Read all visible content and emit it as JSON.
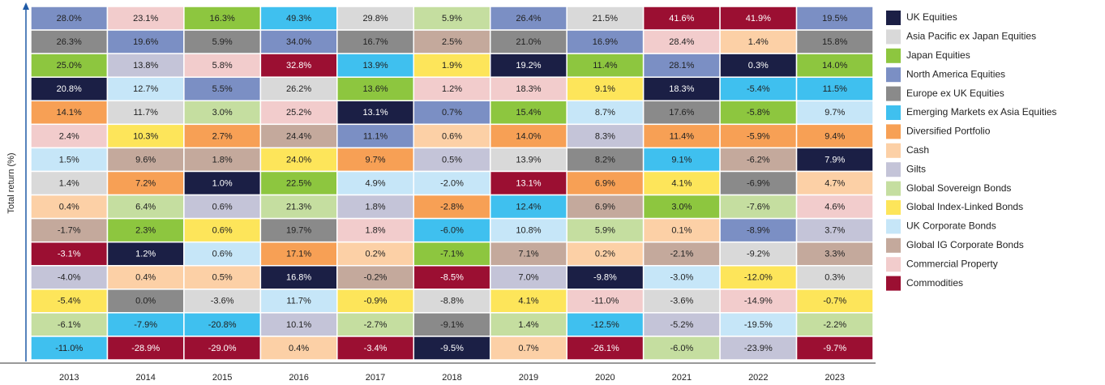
{
  "chart_data": {
    "type": "quilt",
    "y_label": "Total return (%)",
    "categories": [
      "2013",
      "2014",
      "2015",
      "2016",
      "2017",
      "2018",
      "2019",
      "2020",
      "2021",
      "2022",
      "2023"
    ],
    "series": [
      {
        "name": "UK Equities",
        "color": "#1b1f45",
        "values": [
          20.8,
          1.2,
          1.0,
          16.8,
          13.1,
          -9.5,
          19.2,
          -9.8,
          18.3,
          0.3,
          7.9
        ],
        "value_labels": [
          "20.8%",
          "1.2%",
          "1.0%",
          "16.8%",
          "13.1%",
          "-9.5%",
          "19.2%",
          "-9.8%",
          "18.3%",
          "0.3%",
          "7.9%"
        ]
      },
      {
        "name": "Asia Pacific ex Japan Equities",
        "color": "#d9d9d9",
        "values": [
          1.4,
          11.7,
          -3.6,
          26.2,
          29.8,
          -8.8,
          13.9,
          21.5,
          -3.6,
          -9.2,
          0.3
        ],
        "value_labels": [
          "1.4%",
          "11.7%",
          "-3.6%",
          "26.2%",
          "29.8%",
          "-8.8%",
          "13.9%",
          "21.5%",
          "-3.6%",
          "-9.2%",
          "0.3%"
        ]
      },
      {
        "name": "Japan Equities",
        "color": "#8dc63f",
        "values": [
          25.0,
          2.3,
          16.3,
          22.5,
          13.6,
          -7.1,
          15.4,
          11.4,
          3.0,
          -5.8,
          14.0
        ],
        "value_labels": [
          "25.0%",
          "2.3%",
          "16.3%",
          "22.5%",
          "13.6%",
          "-7.1%",
          "15.4%",
          "11.4%",
          "3.0%",
          "-5.8%",
          "14.0%"
        ]
      },
      {
        "name": "North America Equities",
        "color": "#7b8fc4",
        "values": [
          28.0,
          19.6,
          5.5,
          34.0,
          11.1,
          0.7,
          26.4,
          16.9,
          28.1,
          -8.9,
          19.5
        ],
        "value_labels": [
          "28.0%",
          "19.6%",
          "5.5%",
          "34.0%",
          "11.1%",
          "0.7%",
          "26.4%",
          "16.9%",
          "28.1%",
          "-8.9%",
          "19.5%"
        ]
      },
      {
        "name": "Europe ex UK Equities",
        "color": "#8a8a8a",
        "values": [
          26.3,
          0.0,
          5.9,
          19.7,
          16.7,
          -9.1,
          21.0,
          8.2,
          17.6,
          -6.9,
          15.8
        ],
        "value_labels": [
          "26.3%",
          "0.0%",
          "5.9%",
          "19.7%",
          "16.7%",
          "-9.1%",
          "21.0%",
          "8.2%",
          "17.6%",
          "-6.9%",
          "15.8%"
        ]
      },
      {
        "name": "Emerging Markets ex Asia Equities",
        "color": "#3fc0ef",
        "values": [
          -11.0,
          -7.9,
          -20.8,
          49.3,
          13.9,
          -6.0,
          12.4,
          -12.5,
          9.1,
          -5.4,
          11.5
        ],
        "value_labels": [
          "-11.0%",
          "-7.9%",
          "-20.8%",
          "49.3%",
          "13.9%",
          "-6.0%",
          "12.4%",
          "-12.5%",
          "9.1%",
          "-5.4%",
          "11.5%"
        ]
      },
      {
        "name": "Diversified Portfolio",
        "color": "#f7a055",
        "values": [
          14.1,
          7.2,
          2.7,
          17.1,
          9.7,
          -2.8,
          14.0,
          6.9,
          11.4,
          -5.9,
          9.4
        ],
        "value_labels": [
          "14.1%",
          "7.2%",
          "2.7%",
          "17.1%",
          "9.7%",
          "-2.8%",
          "14.0%",
          "6.9%",
          "11.4%",
          "-5.9%",
          "9.4%"
        ]
      },
      {
        "name": "Cash",
        "color": "#fcd0a6",
        "values": [
          0.4,
          0.4,
          0.5,
          0.4,
          0.2,
          0.6,
          0.7,
          0.2,
          0.1,
          1.4,
          4.7
        ],
        "value_labels": [
          "0.4%",
          "0.4%",
          "0.5%",
          "0.4%",
          "0.2%",
          "0.6%",
          "0.7%",
          "0.2%",
          "0.1%",
          "1.4%",
          "4.7%"
        ]
      },
      {
        "name": "Gilts",
        "color": "#c4c4d8",
        "values": [
          -4.0,
          13.8,
          0.6,
          10.1,
          1.8,
          0.5,
          7.0,
          8.3,
          -5.2,
          -23.9,
          3.7
        ],
        "value_labels": [
          "-4.0%",
          "13.8%",
          "0.6%",
          "10.1%",
          "1.8%",
          "0.5%",
          "7.0%",
          "8.3%",
          "-5.2%",
          "-23.9%",
          "3.7%"
        ]
      },
      {
        "name": "Global Sovereign Bonds",
        "color": "#c5dea0",
        "values": [
          -6.1,
          6.4,
          3.0,
          21.3,
          -2.7,
          5.9,
          1.4,
          5.9,
          -6.0,
          -7.6,
          -2.2
        ],
        "value_labels": [
          "-6.1%",
          "6.4%",
          "3.0%",
          "21.3%",
          "-2.7%",
          "5.9%",
          "1.4%",
          "5.9%",
          "-6.0%",
          "-7.6%",
          "-2.2%"
        ]
      },
      {
        "name": "Global Index-Linked Bonds",
        "color": "#fde55a",
        "values": [
          -5.4,
          10.3,
          0.6,
          24.0,
          -0.9,
          1.9,
          4.1,
          9.1,
          4.1,
          -12.0,
          -0.7
        ],
        "value_labels": [
          "-5.4%",
          "10.3%",
          "0.6%",
          "24.0%",
          "-0.9%",
          "1.9%",
          "4.1%",
          "9.1%",
          "4.1%",
          "-12.0%",
          "-0.7%"
        ]
      },
      {
        "name": "UK Corporate Bonds",
        "color": "#c6e6f8",
        "values": [
          1.5,
          12.7,
          0.6,
          11.7,
          4.9,
          -2.0,
          10.8,
          8.7,
          -3.0,
          -19.5,
          9.7
        ],
        "value_labels": [
          "1.5%",
          "12.7%",
          "0.6%",
          "11.7%",
          "4.9%",
          "-2.0%",
          "10.8%",
          "8.7%",
          "-3.0%",
          "-19.5%",
          "9.7%"
        ]
      },
      {
        "name": "Global IG Corporate Bonds",
        "color": "#c4a99c",
        "values": [
          -1.7,
          9.6,
          1.8,
          24.4,
          -0.2,
          2.5,
          7.1,
          6.9,
          -2.1,
          -6.2,
          3.3
        ],
        "value_labels": [
          "-1.7%",
          "9.6%",
          "1.8%",
          "24.4%",
          "-0.2%",
          "2.5%",
          "7.1%",
          "6.9%",
          "-2.1%",
          "-6.2%",
          "3.3%"
        ]
      },
      {
        "name": "Commercial Property",
        "color": "#f2cccc",
        "values": [
          2.4,
          23.1,
          5.8,
          25.2,
          1.8,
          1.2,
          18.3,
          -11.0,
          28.4,
          -14.9,
          4.6
        ],
        "value_labels": [
          "2.4%",
          "23.1%",
          "5.8%",
          "25.2%",
          "1.8%",
          "1.2%",
          "18.3%",
          "-11.0%",
          "28.4%",
          "-14.9%",
          "4.6%"
        ]
      },
      {
        "name": "Commodities",
        "color": "#9b0f32",
        "values": [
          -3.1,
          -28.9,
          -29.0,
          32.8,
          -3.4,
          -8.5,
          13.1,
          -26.1,
          41.6,
          41.9,
          -9.7
        ],
        "value_labels": [
          "-3.1%",
          "-28.9%",
          "-29.0%",
          "32.8%",
          "-3.4%",
          "-8.5%",
          "13.1%",
          "-26.1%",
          "41.6%",
          "41.9%",
          "-9.7%"
        ]
      }
    ]
  }
}
